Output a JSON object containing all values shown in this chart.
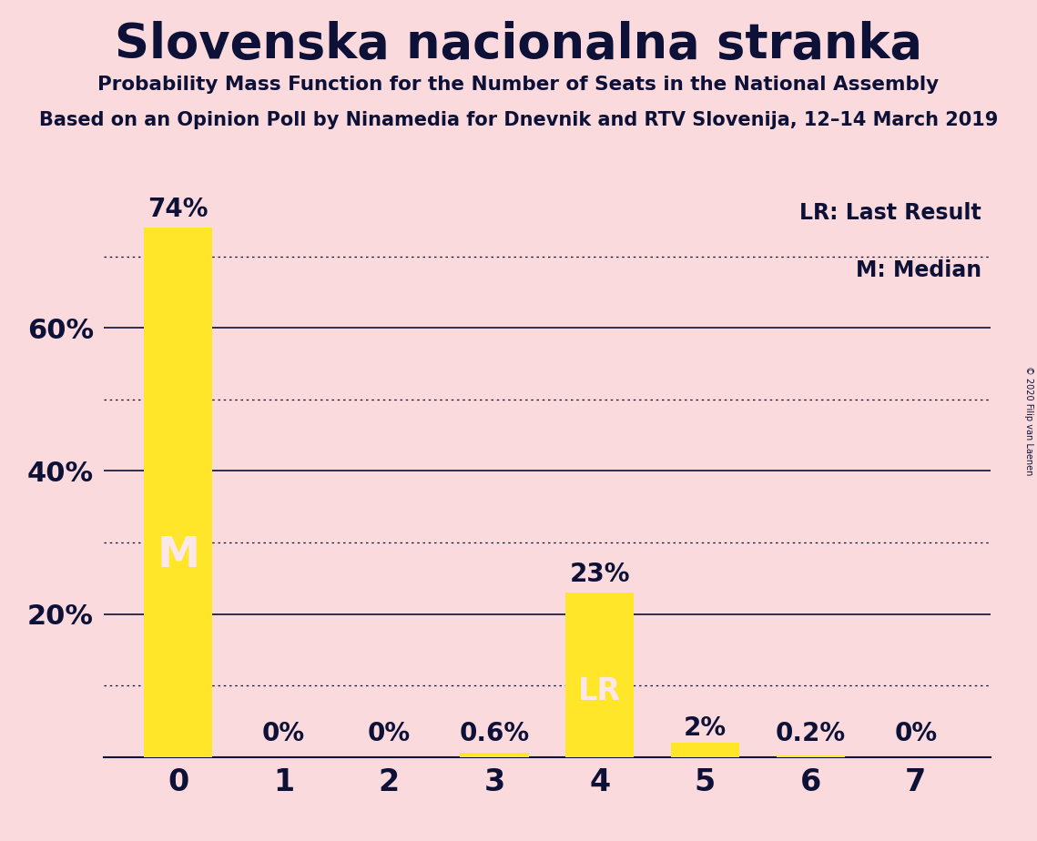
{
  "title": "Slovenska nacionalna stranka",
  "subtitle": "Probability Mass Function for the Number of Seats in the National Assembly",
  "source_line": "Based on an Opinion Poll by Ninamedia for Dnevnik and RTV Slovenija, 12–14 March 2019",
  "copyright": "© 2020 Filip van Laenen",
  "categories": [
    0,
    1,
    2,
    3,
    4,
    5,
    6,
    7
  ],
  "values": [
    74,
    0,
    0,
    0.6,
    23,
    2,
    0.2,
    0
  ],
  "bar_color": "#FFE629",
  "background_color": "#FADADD",
  "text_color": "#0d1137",
  "label_above": [
    "74%",
    "0%",
    "0%",
    "0.6%",
    "23%",
    "2%",
    "0.2%",
    "0%"
  ],
  "median_bar": 0,
  "lr_bar": 4,
  "median_label": "M",
  "lr_label": "LR",
  "legend_lr": "LR: Last Result",
  "legend_m": "M: Median",
  "ylim": [
    0,
    80
  ],
  "ytick_positions": [
    20,
    40,
    60
  ],
  "ytick_labels": [
    "20%",
    "40%",
    "60%"
  ],
  "solid_gridlines": [
    20,
    40,
    60
  ],
  "dotted_gridlines": [
    10,
    30,
    50,
    70
  ]
}
